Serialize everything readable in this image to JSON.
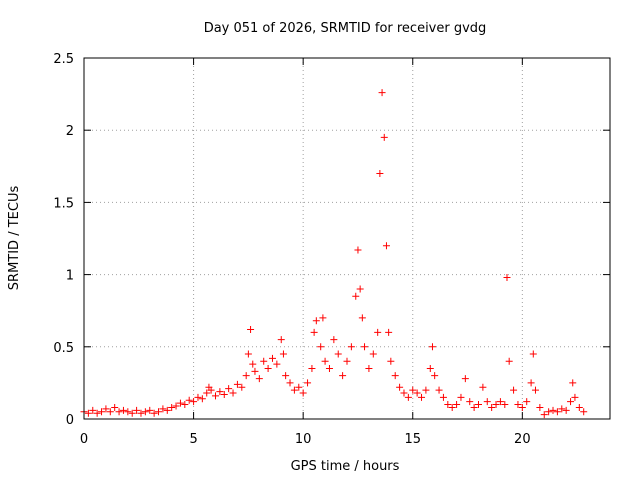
{
  "chart_data": {
    "type": "scatter",
    "title": "Day 051 of 2026, SRMTID for receiver gvdg",
    "xlabel": "GPS time / hours",
    "ylabel": "SRMTID / TECUs",
    "xlim": [
      0,
      24
    ],
    "ylim": [
      0,
      2.5
    ],
    "xticks": [
      0,
      5,
      10,
      15,
      20
    ],
    "yticks": [
      0,
      0.5,
      1,
      1.5,
      2,
      2.5
    ],
    "xtick_labels": [
      "0",
      "5",
      "10",
      "15",
      "20"
    ],
    "ytick_labels": [
      "0",
      "0.5",
      "1",
      "1.5",
      "2",
      "2.5"
    ],
    "grid": true,
    "marker": "+",
    "series": [
      {
        "name": "SRMTID",
        "color": "#ff0000",
        "points": [
          [
            0.0,
            0.05
          ],
          [
            0.2,
            0.04
          ],
          [
            0.4,
            0.06
          ],
          [
            0.6,
            0.04
          ],
          [
            0.8,
            0.05
          ],
          [
            1.0,
            0.07
          ],
          [
            1.2,
            0.05
          ],
          [
            1.4,
            0.08
          ],
          [
            1.6,
            0.05
          ],
          [
            1.8,
            0.06
          ],
          [
            2.0,
            0.05
          ],
          [
            2.2,
            0.04
          ],
          [
            2.4,
            0.06
          ],
          [
            2.6,
            0.04
          ],
          [
            2.8,
            0.05
          ],
          [
            3.0,
            0.06
          ],
          [
            3.2,
            0.04
          ],
          [
            3.4,
            0.05
          ],
          [
            3.6,
            0.07
          ],
          [
            3.8,
            0.06
          ],
          [
            4.0,
            0.08
          ],
          [
            4.2,
            0.09
          ],
          [
            4.4,
            0.11
          ],
          [
            4.6,
            0.1
          ],
          [
            4.8,
            0.13
          ],
          [
            5.0,
            0.12
          ],
          [
            5.2,
            0.15
          ],
          [
            5.4,
            0.14
          ],
          [
            5.6,
            0.18
          ],
          [
            5.7,
            0.22
          ],
          [
            5.8,
            0.2
          ],
          [
            6.0,
            0.16
          ],
          [
            6.2,
            0.19
          ],
          [
            6.4,
            0.17
          ],
          [
            6.6,
            0.21
          ],
          [
            6.8,
            0.18
          ],
          [
            7.0,
            0.24
          ],
          [
            7.2,
            0.22
          ],
          [
            7.4,
            0.3
          ],
          [
            7.5,
            0.45
          ],
          [
            7.6,
            0.62
          ],
          [
            7.7,
            0.38
          ],
          [
            7.8,
            0.33
          ],
          [
            8.0,
            0.28
          ],
          [
            8.2,
            0.4
          ],
          [
            8.4,
            0.35
          ],
          [
            8.6,
            0.42
          ],
          [
            8.8,
            0.38
          ],
          [
            9.0,
            0.55
          ],
          [
            9.1,
            0.45
          ],
          [
            9.2,
            0.3
          ],
          [
            9.4,
            0.25
          ],
          [
            9.6,
            0.2
          ],
          [
            9.8,
            0.22
          ],
          [
            10.0,
            0.18
          ],
          [
            10.2,
            0.25
          ],
          [
            10.4,
            0.35
          ],
          [
            10.5,
            0.6
          ],
          [
            10.6,
            0.68
          ],
          [
            10.8,
            0.5
          ],
          [
            10.9,
            0.7
          ],
          [
            11.0,
            0.4
          ],
          [
            11.2,
            0.35
          ],
          [
            11.4,
            0.55
          ],
          [
            11.6,
            0.45
          ],
          [
            11.8,
            0.3
          ],
          [
            12.0,
            0.4
          ],
          [
            12.2,
            0.5
          ],
          [
            12.4,
            0.85
          ],
          [
            12.5,
            1.17
          ],
          [
            12.6,
            0.9
          ],
          [
            12.7,
            0.7
          ],
          [
            12.8,
            0.5
          ],
          [
            13.0,
            0.35
          ],
          [
            13.2,
            0.45
          ],
          [
            13.4,
            0.6
          ],
          [
            13.5,
            1.7
          ],
          [
            13.6,
            2.26
          ],
          [
            13.7,
            1.95
          ],
          [
            13.8,
            1.2
          ],
          [
            13.9,
            0.6
          ],
          [
            14.0,
            0.4
          ],
          [
            14.2,
            0.3
          ],
          [
            14.4,
            0.22
          ],
          [
            14.6,
            0.18
          ],
          [
            14.8,
            0.15
          ],
          [
            15.0,
            0.2
          ],
          [
            15.2,
            0.18
          ],
          [
            15.4,
            0.15
          ],
          [
            15.6,
            0.2
          ],
          [
            15.8,
            0.35
          ],
          [
            15.9,
            0.5
          ],
          [
            16.0,
            0.3
          ],
          [
            16.2,
            0.2
          ],
          [
            16.4,
            0.15
          ],
          [
            16.6,
            0.1
          ],
          [
            16.8,
            0.08
          ],
          [
            17.0,
            0.1
          ],
          [
            17.2,
            0.15
          ],
          [
            17.4,
            0.28
          ],
          [
            17.6,
            0.12
          ],
          [
            17.8,
            0.08
          ],
          [
            18.0,
            0.1
          ],
          [
            18.2,
            0.22
          ],
          [
            18.4,
            0.12
          ],
          [
            18.6,
            0.08
          ],
          [
            18.8,
            0.1
          ],
          [
            19.0,
            0.12
          ],
          [
            19.2,
            0.1
          ],
          [
            19.3,
            0.98
          ],
          [
            19.4,
            0.4
          ],
          [
            19.6,
            0.2
          ],
          [
            19.8,
            0.1
          ],
          [
            20.0,
            0.08
          ],
          [
            20.2,
            0.12
          ],
          [
            20.4,
            0.25
          ],
          [
            20.5,
            0.45
          ],
          [
            20.6,
            0.2
          ],
          [
            20.8,
            0.08
          ],
          [
            21.0,
            0.03
          ],
          [
            21.2,
            0.05
          ],
          [
            21.4,
            0.06
          ],
          [
            21.6,
            0.05
          ],
          [
            21.8,
            0.07
          ],
          [
            22.0,
            0.06
          ],
          [
            22.2,
            0.12
          ],
          [
            22.3,
            0.25
          ],
          [
            22.4,
            0.15
          ],
          [
            22.6,
            0.08
          ],
          [
            22.8,
            0.05
          ]
        ]
      }
    ]
  }
}
